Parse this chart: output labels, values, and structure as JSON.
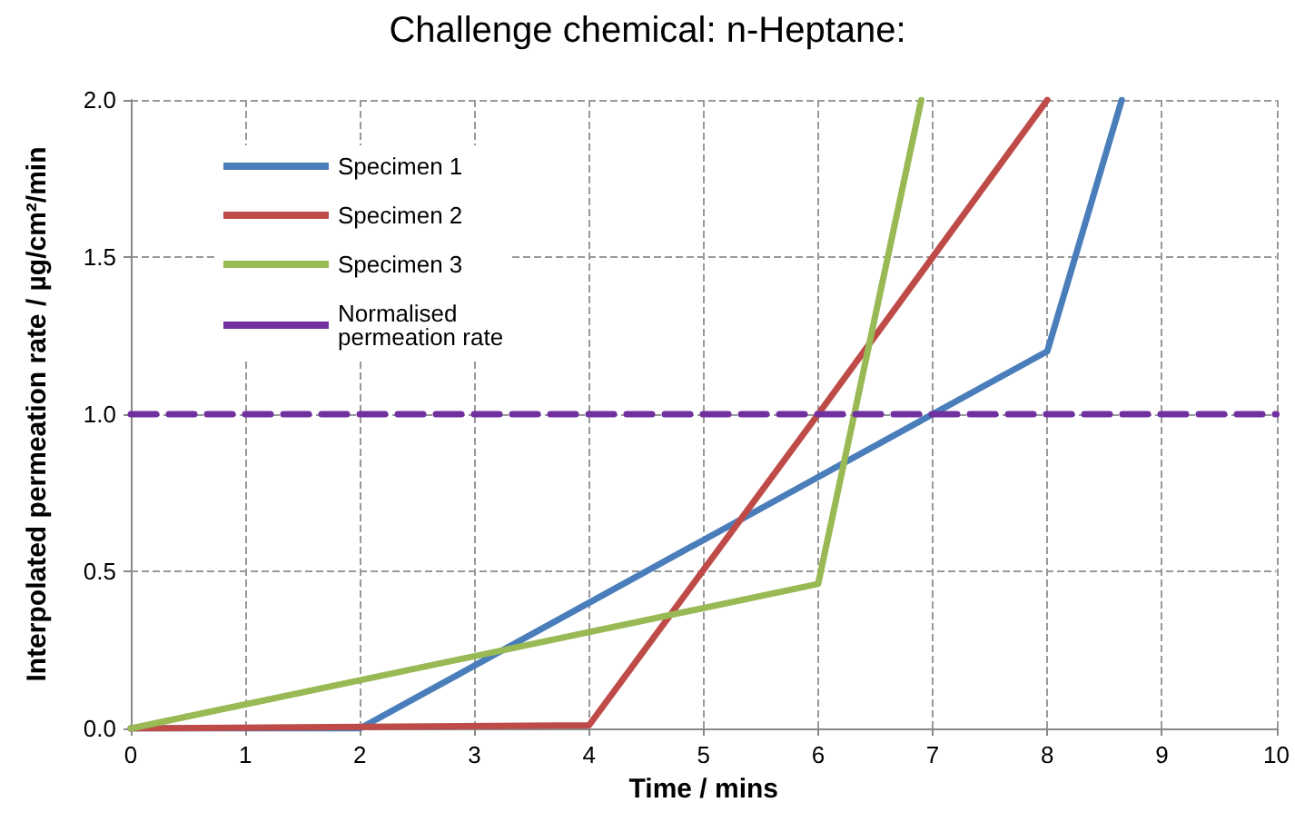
{
  "chart_data": {
    "type": "line",
    "title": "Challenge chemical: n-Heptane:",
    "xlabel": "Time / mins",
    "ylabel": "Interpolated permeation rate / µg/cm²/min",
    "xlim": [
      0,
      10
    ],
    "xticks": [
      0,
      1,
      2,
      3,
      4,
      5,
      6,
      7,
      8,
      9,
      10
    ],
    "ylim": [
      0,
      2
    ],
    "yticks": [
      {
        "value": 0,
        "label": "0.0"
      },
      {
        "value": 0.5,
        "label": "0.5"
      },
      {
        "value": 1,
        "label": "1.0"
      },
      {
        "value": 1.5,
        "label": "1.5"
      },
      {
        "value": 2,
        "label": "2.0"
      }
    ],
    "grid": true,
    "legend": "top left",
    "marker": "none",
    "series": [
      {
        "name": "Specimen 1",
        "color": "#4a7ebb",
        "x": [
          0,
          2,
          4,
          6,
          8,
          8.65
        ],
        "values": [
          0,
          0,
          0.4,
          0.8,
          1.2,
          2.0
        ]
      },
      {
        "name": "Specimen 2",
        "color": "#be4b48",
        "x": [
          0,
          4,
          6,
          8
        ],
        "values": [
          0,
          0.01,
          1.0,
          2.0
        ]
      },
      {
        "name": "Specimen 3",
        "color": "#98b954",
        "x": [
          0,
          6,
          6.9
        ],
        "values": [
          0,
          0.46,
          2.0
        ]
      },
      {
        "name": "Normalised permeation rate",
        "color": "#7030a0",
        "line_style": "dashed",
        "x": [
          0,
          10
        ],
        "values": [
          1,
          1
        ]
      }
    ]
  }
}
